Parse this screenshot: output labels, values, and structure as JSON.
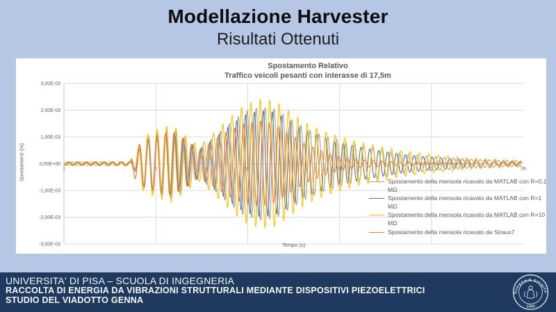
{
  "slide": {
    "title": "Modellazione Harvester",
    "subtitle": "Risultati Ottenuti"
  },
  "footer": {
    "line1": "UNIVERSITA' DI PISA – SCUOLA DI INGEGNERIA",
    "line2": "RACCOLTA DI ENERGIA DA VIBRAZIONI STRUTTURALI MEDIANTE DISPOSITIVI PIEZOELETTRICI",
    "line3": "STUDIO DEL VIADOTTO GENNA",
    "seal_top_text": "IN SUPREMÆ DIGNITATIS",
    "seal_bottom_text": "· 1343 ·"
  },
  "colors": {
    "slide_bg": "#b6c7e6",
    "chart_bg": "#ffffff",
    "footer_bg": "#1f3a5e",
    "grid": "#d9d9d9",
    "axis": "#c6c6c6",
    "chart_text": "#595959",
    "seal": "#dce6f3"
  },
  "chart_data": {
    "type": "line",
    "title": "Spostamento Relativo",
    "subtitle": "Traffico veicoli pesanti con interasse di 17,5m",
    "xlabel": "Tempo (s)",
    "ylabel": "Spostamenti (m)",
    "xlim": [
      1,
      26
    ],
    "ylim": [
      -0.003,
      0.003
    ],
    "grid": true,
    "legend_position": "inside-right",
    "x_ticks": [
      {
        "t": 1,
        "label": "1"
      },
      {
        "t": 6,
        "label": "6"
      },
      {
        "t": 11,
        "label": "11"
      },
      {
        "t": 16,
        "label": "16"
      },
      {
        "t": 21,
        "label": "21"
      },
      {
        "t": 26,
        "label": "26"
      }
    ],
    "x_gridlines": [
      6,
      11,
      16,
      21
    ],
    "y_ticks": [
      {
        "v": 3,
        "label": "3,00E-03"
      },
      {
        "v": 2,
        "label": "2,00E-03"
      },
      {
        "v": 1,
        "label": "1,00E-03"
      },
      {
        "v": 0,
        "label": "0,00E+00"
      },
      {
        "v": -1,
        "label": "-1,00E-03"
      },
      {
        "v": -2,
        "label": "-2,00E-03"
      },
      {
        "v": -3,
        "label": "-3,00E-03"
      }
    ],
    "amplitude_unit": "1e-3 m (envelope amplitudes below are in thousandths)",
    "envelope_t": [
      1,
      4.6,
      4.85,
      5.3,
      6.1,
      6.9,
      7.7,
      8.35,
      9.0,
      9.9,
      10.8,
      11.7,
      12.5,
      13.3,
      14.1,
      15.1,
      16.1,
      17.1,
      18.1,
      19.3,
      20.5,
      22.0,
      23.5,
      25.0,
      25.9
    ],
    "series": [
      {
        "name": "Spostamento della mensola ricavato da MATLAB con R=0,1 MΩ",
        "color": "#a3a3a3",
        "frequency": 2.05,
        "phase_rad": 0.0,
        "envelope_amp_e3": [
          0.06,
          0.07,
          0.25,
          0.9,
          1.15,
          1.3,
          0.9,
          0.55,
          0.9,
          1.45,
          1.95,
          2.12,
          2.05,
          1.7,
          1.35,
          1.05,
          0.85,
          0.68,
          0.55,
          0.4,
          0.3,
          0.22,
          0.16,
          0.12,
          0.1
        ]
      },
      {
        "name": "Spostamento della mensola ricavato da MATLAB con R=1 MΩ",
        "color": "#57749e",
        "frequency": 2.07,
        "phase_rad": 0.4,
        "envelope_amp_e3": [
          0.06,
          0.07,
          0.22,
          0.85,
          1.08,
          1.22,
          0.85,
          0.52,
          0.85,
          1.35,
          1.82,
          2.0,
          1.92,
          1.6,
          1.26,
          0.98,
          0.78,
          0.62,
          0.5,
          0.36,
          0.27,
          0.2,
          0.14,
          0.1,
          0.09
        ]
      },
      {
        "name": "Spostamento della mensola ricavato da MATLAB con R=10 MΩ",
        "color": "#ffc000",
        "frequency": 1.96,
        "phase_rad": 0.9,
        "envelope_amp_e3": [
          0.07,
          0.08,
          0.3,
          1.0,
          1.3,
          1.45,
          1.0,
          0.65,
          1.05,
          1.65,
          2.2,
          2.42,
          2.35,
          1.95,
          1.55,
          1.22,
          1.0,
          0.8,
          0.66,
          0.5,
          0.38,
          0.28,
          0.2,
          0.15,
          0.13
        ]
      },
      {
        "name": "Spostamento della mensola ricavato da Straus7",
        "color": "#ed7d31",
        "frequency": 2.12,
        "phase_rad": 0.15,
        "envelope_amp_e3": [
          0.06,
          0.07,
          0.55,
          0.85,
          1.05,
          1.2,
          0.85,
          0.5,
          0.8,
          1.2,
          1.5,
          1.6,
          1.45,
          1.1,
          0.75,
          0.45,
          0.25,
          0.15,
          0.1,
          0.07,
          0.06,
          0.05,
          0.05,
          0.04,
          0.04
        ]
      }
    ]
  }
}
